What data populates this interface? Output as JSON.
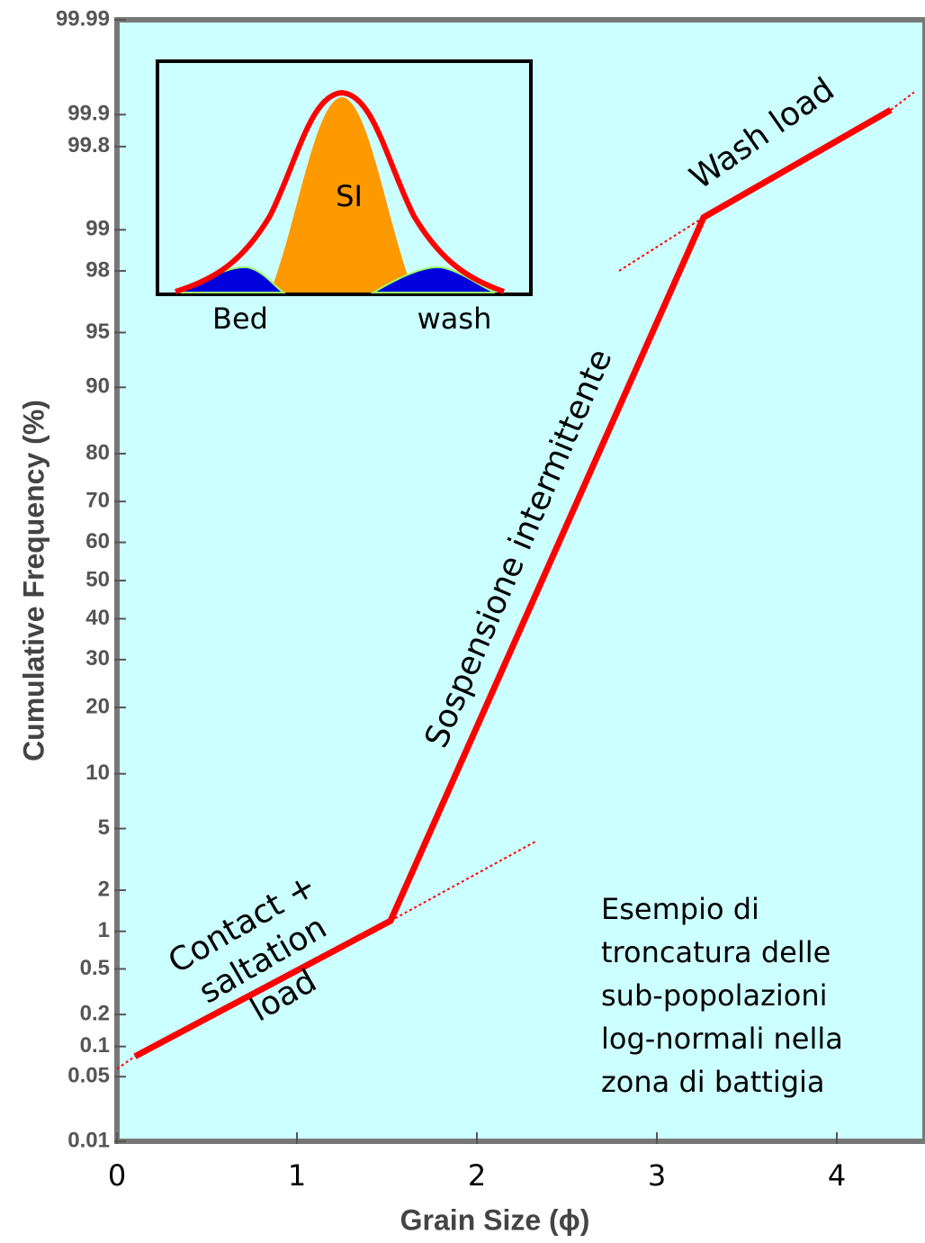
{
  "chart_data": {
    "type": "line",
    "x_label": "Grain Size (ϕ)",
    "y_label": "Cumulative Frequency (%)",
    "xlim": [
      0,
      4.49
    ],
    "xticks": [
      0,
      1,
      2,
      3,
      4
    ],
    "ylim": [
      0.01,
      99.99
    ],
    "yscale": "probability",
    "yticks": [
      0.01,
      0.05,
      0.1,
      0.2,
      0.5,
      1,
      2,
      5,
      10,
      20,
      30,
      40,
      50,
      60,
      70,
      80,
      90,
      95,
      98,
      99,
      99.8,
      99.9,
      99.99
    ],
    "background": "#ccffff",
    "series": [
      {
        "color": "#ff0000",
        "x": [
          0.1,
          1.52,
          3.26,
          4.3
        ],
        "values": [
          0.08,
          1.2,
          99.2,
          99.91
        ]
      },
      {
        "color": "#ff0000",
        "dashed": true,
        "x": [
          0,
          0.1
        ],
        "values": [
          0.06,
          0.08
        ]
      },
      {
        "color": "#ff0000",
        "dashed": true,
        "x": [
          1.52,
          2.33
        ],
        "values": [
          1.2,
          4.2
        ]
      },
      {
        "color": "#ff0000",
        "dashed": true,
        "x": [
          2.79,
          3.26
        ],
        "values": [
          98.0,
          99.2
        ]
      },
      {
        "color": "#ff0000",
        "dashed": true,
        "x": [
          4.3,
          4.43
        ],
        "values": [
          99.91,
          99.94
        ]
      }
    ],
    "annotations": [
      {
        "lines": [
          "Wash load"
        ]
      },
      {
        "lines": [
          "Sospensione intermittente"
        ]
      },
      {
        "lines": [
          "Contact +",
          "saltation",
          "load"
        ]
      },
      {
        "lines": [
          "Esempio di",
          "troncatura delle",
          "sub-popolazioni",
          "log-normali nella",
          "zona di battigia"
        ]
      }
    ],
    "inset": {
      "center_label": "SI",
      "left_label": "Bed",
      "right_label": "wash"
    }
  }
}
